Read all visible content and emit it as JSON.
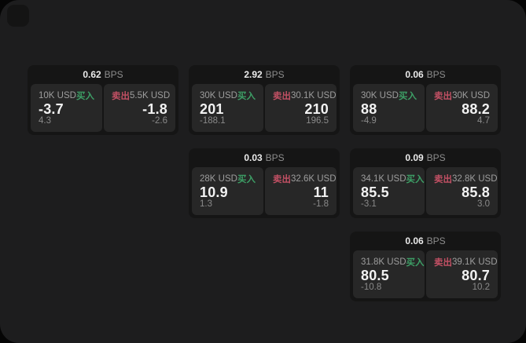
{
  "labels": {
    "buy": "买入",
    "sell": "卖出",
    "bps_unit": "BPS"
  },
  "colors": {
    "buy_accent": "#3d9f66",
    "sell_accent": "#c25064",
    "surface": "#1d1d1e",
    "card": "#151515",
    "panel": "#272727"
  },
  "cards": [
    {
      "bps": "0.62",
      "grid": {
        "row": 1,
        "col": 1
      },
      "buy": {
        "amount": "10K USD",
        "value": "-3.7",
        "sub": "4.3"
      },
      "sell": {
        "amount": "5.5K USD",
        "value": "-1.8",
        "sub": "-2.6"
      }
    },
    {
      "bps": "2.92",
      "grid": {
        "row": 1,
        "col": 2
      },
      "buy": {
        "amount": "30K USD",
        "value": "201",
        "sub": "-188.1"
      },
      "sell": {
        "amount": "30.1K USD",
        "value": "210",
        "sub": "196.5"
      }
    },
    {
      "bps": "0.06",
      "grid": {
        "row": 1,
        "col": 3
      },
      "buy": {
        "amount": "30K USD",
        "value": "88",
        "sub": "-4.9"
      },
      "sell": {
        "amount": "30K USD",
        "value": "88.2",
        "sub": "4.7"
      }
    },
    {
      "bps": "0.03",
      "grid": {
        "row": 2,
        "col": 2
      },
      "buy": {
        "amount": "28K USD",
        "value": "10.9",
        "sub": "1.3"
      },
      "sell": {
        "amount": "32.6K USD",
        "value": "11",
        "sub": "-1.8"
      }
    },
    {
      "bps": "0.09",
      "grid": {
        "row": 2,
        "col": 3
      },
      "buy": {
        "amount": "34.1K USD",
        "value": "85.5",
        "sub": "-3.1"
      },
      "sell": {
        "amount": "32.8K USD",
        "value": "85.8",
        "sub": "3.0"
      }
    },
    {
      "bps": "0.06",
      "grid": {
        "row": 3,
        "col": 3
      },
      "buy": {
        "amount": "31.8K USD",
        "value": "80.5",
        "sub": "-10.8"
      },
      "sell": {
        "amount": "39.1K USD",
        "value": "80.7",
        "sub": "10.2"
      }
    }
  ]
}
